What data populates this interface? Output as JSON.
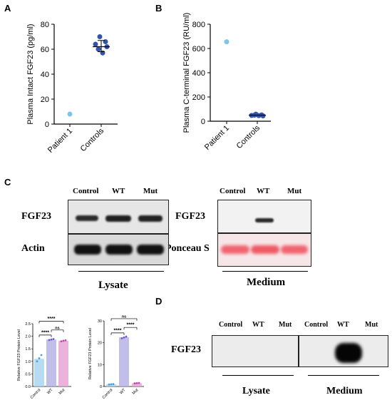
{
  "panels": {
    "A": "A",
    "B": "B",
    "C": "C",
    "D": "D"
  },
  "chart_data": [
    {
      "type": "scatter",
      "ylabel": "Plasma Intact FGF23 (pg/ml)",
      "categories": [
        "Patient 1",
        "Controls"
      ],
      "yticks": [
        "0",
        "20",
        "40",
        "60",
        "80"
      ],
      "ylim": [
        0,
        80
      ],
      "series": [
        {
          "category": "Patient 1",
          "values": [
            8
          ]
        },
        {
          "category": "Controls",
          "values": [
            70,
            66,
            64,
            62,
            60,
            57
          ],
          "mean": 62,
          "err": [
            58,
            67
          ]
        }
      ],
      "colors": {
        "patient": "#7fc4ea",
        "controls": "#3355a8"
      }
    },
    {
      "type": "scatter",
      "ylabel": "Plasma C-terminal FGF23 (RU/ml)",
      "categories": [
        "Patient 1",
        "Controls"
      ],
      "yticks": [
        "0",
        "200",
        "400",
        "600",
        "800"
      ],
      "ylim": [
        0,
        800
      ],
      "series": [
        {
          "category": "Patient 1",
          "values": [
            655
          ]
        },
        {
          "category": "Controls",
          "values": [
            58,
            52,
            48,
            44,
            50,
            46
          ],
          "mean": 50
        }
      ],
      "colors": {
        "patient": "#7fc4ea",
        "controls": "#3355a8"
      }
    },
    {
      "type": "bar",
      "ylabel": "Relative FGF23 Protein Level",
      "categories": [
        "Control",
        "WT",
        "Mut"
      ],
      "values": [
        1.1,
        1.87,
        1.82
      ],
      "points": [
        [
          1.0,
          1.12,
          1.25
        ],
        [
          1.85,
          1.87,
          1.89
        ],
        [
          1.8,
          1.82,
          1.84
        ]
      ],
      "yticks": [
        "0.0",
        "0.5",
        "1.0",
        "1.5",
        "2.0",
        "2.5"
      ],
      "ylim": [
        0,
        2.5
      ],
      "bar_colors": [
        "#a9d6f2",
        "#b7b3e6",
        "#e8a6d6"
      ],
      "dot_colors": [
        "#4aa0d8",
        "#6a5fc8",
        "#c04aa8"
      ],
      "sig": [
        {
          "label": "****",
          "from": 0,
          "to": 1,
          "level": 2.05
        },
        {
          "label": "ns",
          "from": 1,
          "to": 2,
          "level": 2.25
        },
        {
          "label": "****",
          "from": 0,
          "to": 2,
          "level": 2.6
        }
      ]
    },
    {
      "type": "bar",
      "ylabel": "Relative FGF23 Protein Level",
      "categories": [
        "Control",
        "WT",
        "Mut"
      ],
      "values": [
        1.0,
        22.5,
        1.5
      ],
      "points": [
        [
          0.9,
          1.0,
          1.1
        ],
        [
          22.0,
          22.4,
          22.8
        ],
        [
          1.4,
          1.5,
          1.6
        ]
      ],
      "yticks": [
        "0",
        "10",
        "20",
        "30"
      ],
      "ylim": [
        0,
        30
      ],
      "bar_colors": [
        "#a9d6f2",
        "#b7b3e6",
        "#e8a6d6"
      ],
      "dot_colors": [
        "#4aa0d8",
        "#6a5fc8",
        "#c04aa8"
      ],
      "sig": [
        {
          "label": "****",
          "from": 0,
          "to": 1,
          "level": 24.5
        },
        {
          "label": "****",
          "from": 1,
          "to": 2,
          "level": 27
        },
        {
          "label": "ns",
          "from": 0,
          "to": 2,
          "level": 31
        }
      ]
    }
  ],
  "blot_c": {
    "lysate_cols": [
      "Control",
      "WT",
      "Mut"
    ],
    "medium_cols": [
      "Control",
      "WT",
      "Mut"
    ],
    "row_fgf23": "FGF23",
    "row_actin": "Actin",
    "row_medium_fgf23": "FGF23",
    "row_ponceau": "Ponceau S",
    "lysate_label": "Lysate",
    "medium_label": "Medium"
  },
  "blot_d": {
    "cols": [
      "Control",
      "WT",
      "Mut",
      "Control",
      "WT",
      "Mut"
    ],
    "row": "FGF23",
    "lysate_label": "Lysate",
    "medium_label": "Medium"
  }
}
